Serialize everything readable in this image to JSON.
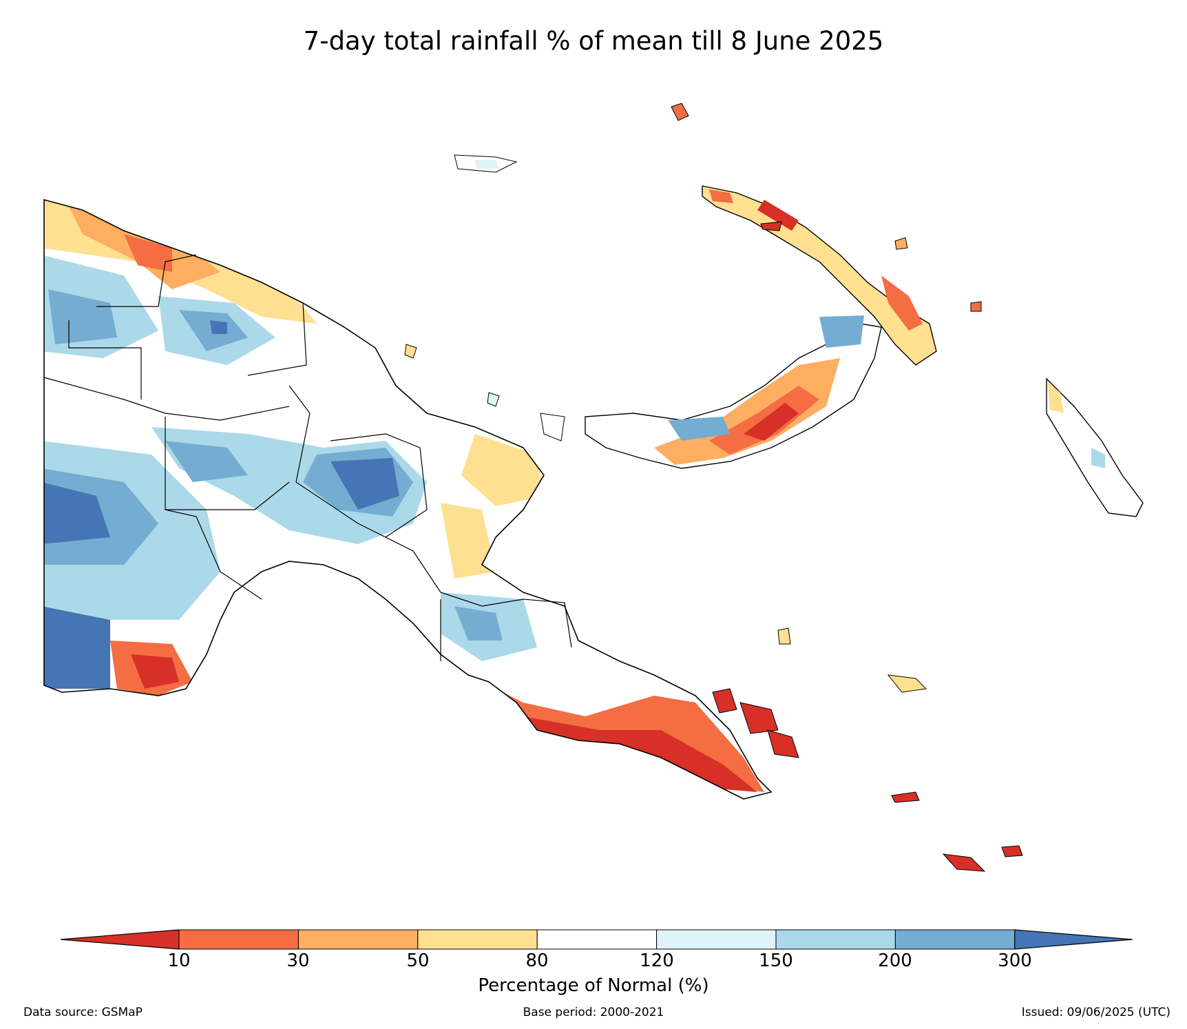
{
  "title": "7-day total rainfall % of mean till 8 June 2025",
  "colorbar": {
    "ticks": [
      "10",
      "30",
      "50",
      "80",
      "120",
      "150",
      "200",
      "300"
    ],
    "colors": [
      "#d73027",
      "#f46d43",
      "#fdae61",
      "#fee090",
      "#ffffff",
      "#e0f3f8",
      "#abd9e9",
      "#74add1",
      "#4575b4"
    ],
    "label": "Percentage of Normal (%)"
  },
  "footer": {
    "source": "Data source: GSMaP",
    "base": "Base period: 2000-2021",
    "issued": "Issued: 09/06/2025 (UTC)"
  }
}
